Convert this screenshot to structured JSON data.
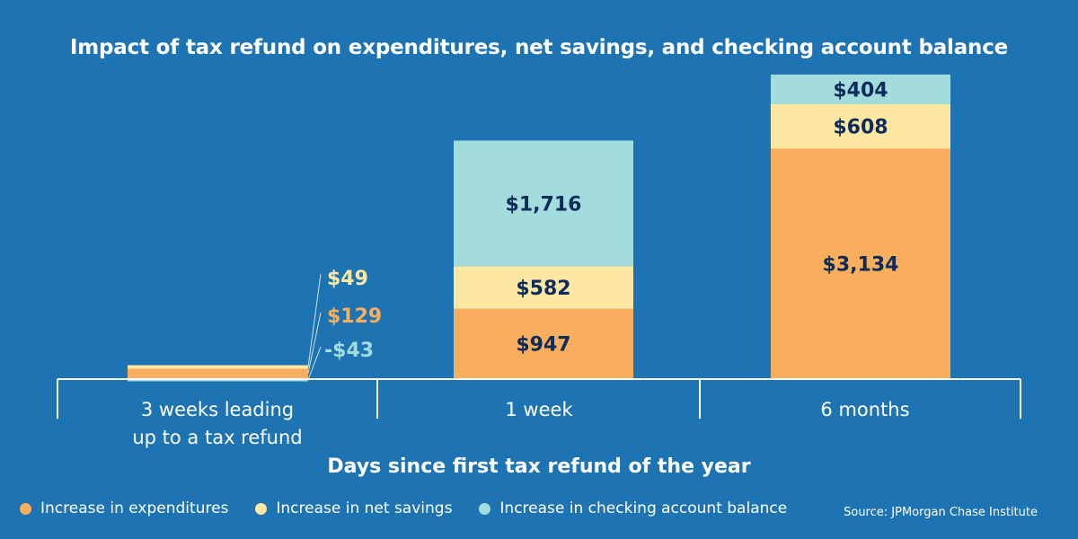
{
  "chart_data": {
    "type": "bar",
    "stacked": true,
    "title": "Impact of tax refund on expenditures, net savings, and checking account balance",
    "xlabel": "Days since first tax refund of the year",
    "ylabel": "",
    "categories": [
      [
        "3 weeks leading",
        "up to a tax refund"
      ],
      [
        "1 week"
      ],
      [
        "6 months"
      ]
    ],
    "series": [
      {
        "name": "Increase in expenditures",
        "color": "#f9ae5d",
        "values": [
          129,
          947,
          3134
        ],
        "value_labels": [
          "$129",
          "$947",
          "$3,134"
        ]
      },
      {
        "name": "Increase in net savings",
        "color": "#fde7a3",
        "values": [
          49,
          582,
          608
        ],
        "value_labels": [
          "$49",
          "$582",
          "$608"
        ]
      },
      {
        "name": "Increase in checking account balance",
        "color": "#a3dcdc",
        "values": [
          -43,
          1716,
          404
        ],
        "value_labels": [
          "-$43",
          "$1,716",
          "$404"
        ]
      }
    ],
    "ylim": [
      -100,
      4200
    ],
    "grid": false,
    "legend_position": "bottom-left",
    "colors": {
      "background": "#1e73b3",
      "label_dark": "#0e2c5a",
      "axis": "#ffffff"
    }
  },
  "source": "Source: JPMorgan Chase Institute"
}
